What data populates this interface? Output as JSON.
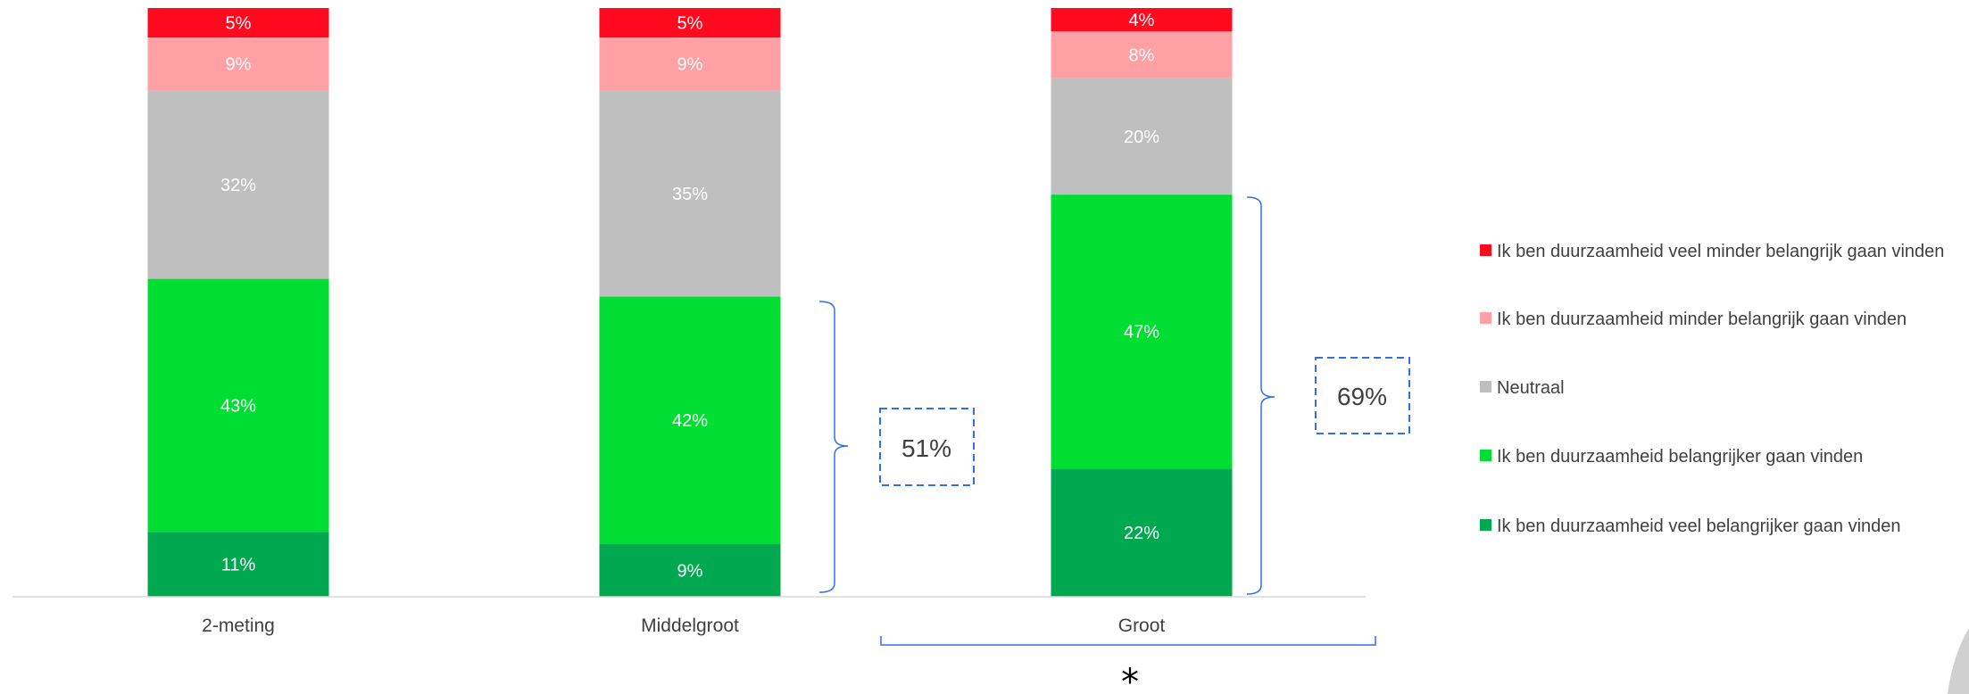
{
  "chart_data": {
    "type": "bar",
    "stacked": true,
    "categories": [
      "2-meting",
      "Middelgroot",
      "Groot"
    ],
    "series": [
      {
        "name": "Ik ben duurzaamheid veel belangrijker gaan vinden",
        "color": "#00A84F",
        "values": [
          11,
          9,
          22
        ]
      },
      {
        "name": "Ik ben duurzaamheid belangrijker gaan vinden",
        "color": "#00DD33",
        "values": [
          43,
          42,
          47
        ]
      },
      {
        "name": "Neutraal",
        "color": "#BFBFBF",
        "values": [
          32,
          35,
          20
        ]
      },
      {
        "name": "Ik ben duurzaamheid minder belangrijk gaan vinden",
        "color": "#FFA0A5",
        "values": [
          9,
          9,
          8
        ]
      },
      {
        "name": "Ik ben duurzaamheid veel minder belangrijk gaan vinden",
        "color": "#FF0A1E",
        "values": [
          5,
          5,
          4
        ]
      }
    ],
    "data_labels": [
      [
        "11%",
        "9%",
        "22%"
      ],
      [
        "43%",
        "42%",
        "47%"
      ],
      [
        "32%",
        "35%",
        "20%"
      ],
      [
        "9%",
        "9%",
        "8%"
      ],
      [
        "5%",
        "5%",
        "4%"
      ]
    ],
    "annotations": [
      {
        "category": "Middelgroot",
        "text": "51%"
      },
      {
        "category": "Groot",
        "text": "69%"
      }
    ],
    "significance_marker": "*",
    "legend_position": "right",
    "grid": false
  },
  "colors": {
    "box_border": "#2F6FED",
    "axis": "#D9D9D9",
    "text": "#404040"
  }
}
